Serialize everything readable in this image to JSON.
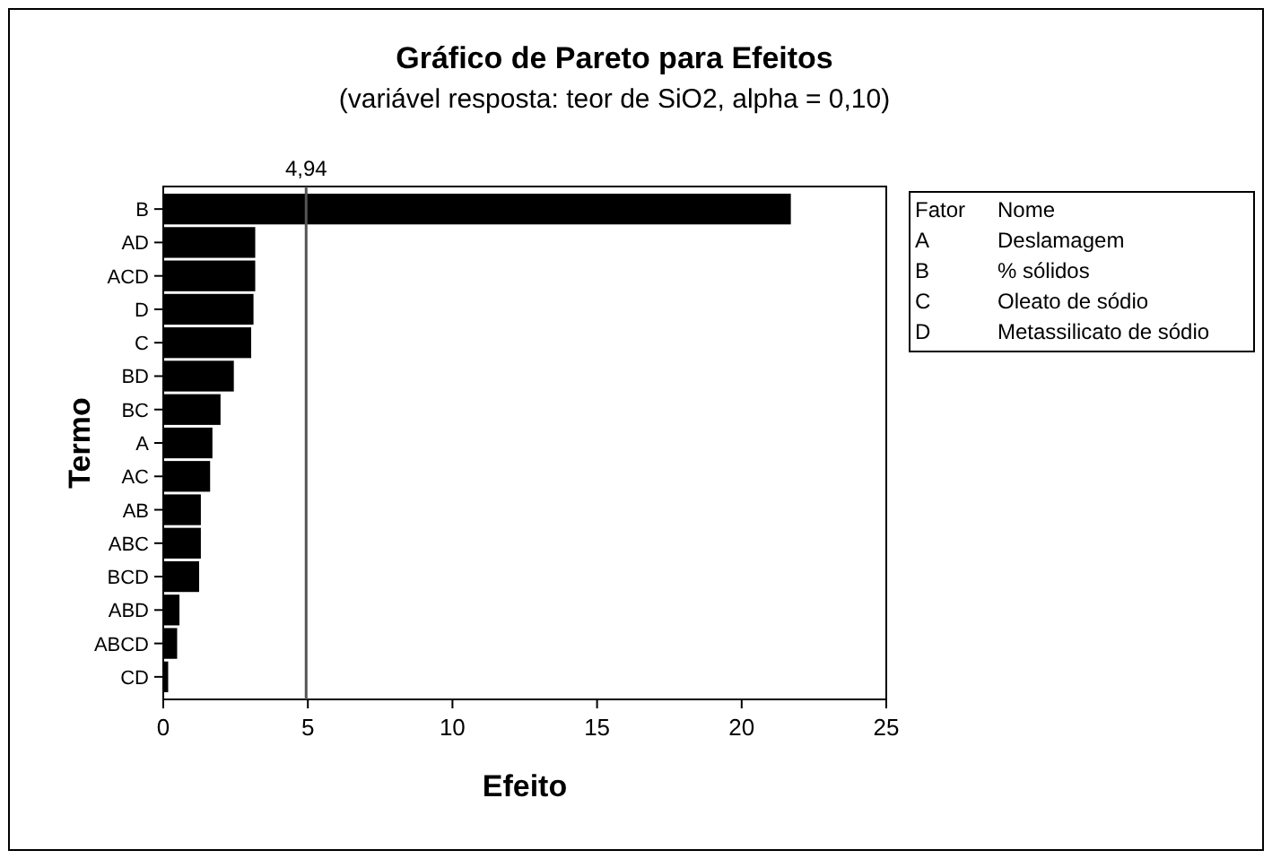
{
  "chart_data": {
    "type": "bar",
    "orientation": "horizontal",
    "title": "Gráfico de Pareto para Efeitos",
    "subtitle": "(variável resposta: teor de SiO2, alpha = 0,10)",
    "xlabel": "Efeito",
    "ylabel": "Termo",
    "categories": [
      "B",
      "AD",
      "ACD",
      "D",
      "C",
      "BD",
      "BC",
      "A",
      "AC",
      "AB",
      "ABC",
      "BCD",
      "ABD",
      "ABCD",
      "CD"
    ],
    "values": [
      21.7,
      3.18,
      3.18,
      3.12,
      3.04,
      2.44,
      1.98,
      1.7,
      1.62,
      1.3,
      1.3,
      1.24,
      0.56,
      0.48,
      0.17
    ],
    "color": "#000000",
    "xlim": [
      0,
      25
    ],
    "xticks": [
      0,
      5,
      10,
      15,
      20,
      25
    ],
    "ref_lines": [
      {
        "axis": "x",
        "value": 4.94,
        "label": "4,94",
        "color": "#555555"
      }
    ],
    "annotations": [
      "Fator",
      "Nome",
      "A",
      "Deslamagem",
      "B",
      "% sólidos",
      "C",
      "Oleato de sódio",
      "D",
      "Metassilicato de sódio"
    ]
  }
}
